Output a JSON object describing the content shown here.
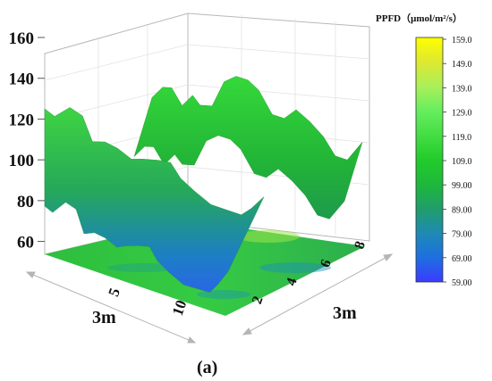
{
  "caption": "(a)",
  "chart_data": {
    "type": "surface",
    "z_axis": {
      "ticks": [
        60,
        80,
        100,
        120,
        140,
        160
      ],
      "range": [
        55,
        160
      ]
    },
    "x_axis": {
      "label": "3m",
      "ticks": [
        5,
        10
      ],
      "range": [
        0,
        14
      ]
    },
    "y_axis": {
      "label": "3m",
      "ticks": [
        2,
        4,
        6,
        8
      ],
      "range": [
        1,
        8.6
      ]
    },
    "colorbar": {
      "title": "PPFD（μmol/m²/s）",
      "labels": [
        "159.0",
        "149.0",
        "139.0",
        "129.0",
        "119.0",
        "109.0",
        "99.00",
        "89.00",
        "79.00",
        "69.00",
        "59.00"
      ],
      "range": [
        59,
        159
      ],
      "colors": [
        "#3b3bff",
        "#1e6fe0",
        "#1f8ab4",
        "#209e6a",
        "#1eb83a",
        "#22cc2a",
        "#44dd44",
        "#66ee5e",
        "#aaf05a",
        "#dde830",
        "#ffff00"
      ]
    },
    "front_edge_profile": {
      "x": [
        0,
        0.6,
        1.6,
        2.4,
        3.0,
        3.8,
        4.6,
        5.5,
        6.2,
        7.2,
        8.0,
        8.6,
        9.5,
        10.6,
        11.6,
        12.6,
        13.2,
        14.0
      ],
      "z": [
        79,
        77,
        84,
        82,
        71,
        73,
        72,
        69,
        71,
        73,
        74,
        68,
        64,
        60,
        60,
        60,
        65,
        73
      ]
    },
    "back_edge_profile": {
      "x": [
        0,
        0.7,
        1.3,
        2.0,
        2.7,
        3.2,
        4.0,
        4.8,
        5.6,
        6.4,
        7.1,
        8.0,
        8.8,
        9.6,
        10.5,
        11.4,
        12.2,
        13.0,
        14.0
      ],
      "z": [
        124,
        131,
        131,
        120,
        127,
        121,
        121,
        137,
        141,
        139,
        133,
        118,
        116,
        122,
        115,
        106,
        94,
        92,
        104
      ]
    }
  }
}
